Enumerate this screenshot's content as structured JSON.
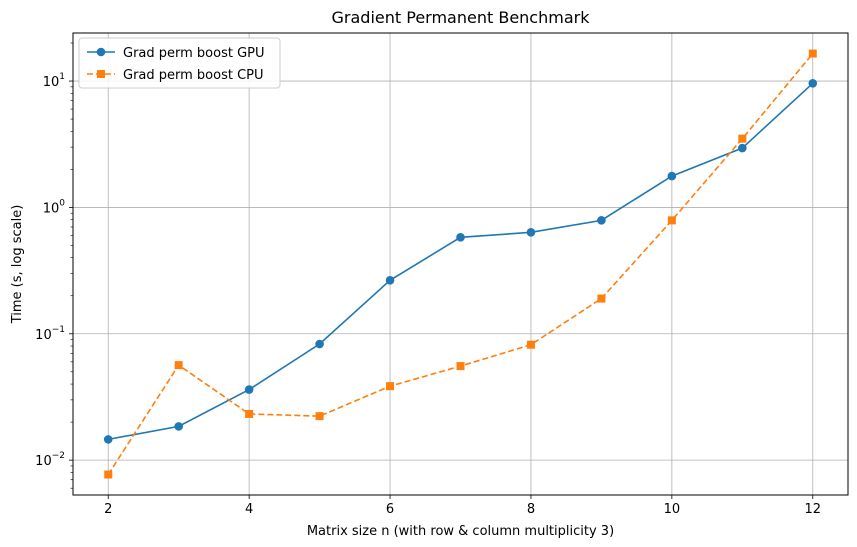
{
  "chart_data": {
    "type": "line",
    "title": "Gradient Permanent Benchmark",
    "xlabel": "Matrix size n (with row & column multiplicity 3)",
    "ylabel": "Time (s, log scale)",
    "y_scale": "log",
    "xlim": [
      1.5,
      12.5
    ],
    "ylim": [
      0.0053,
      24
    ],
    "x_ticks": [
      2,
      4,
      6,
      8,
      10,
      12
    ],
    "y_ticks": [
      {
        "value": 0.01,
        "base": "10",
        "exp": "−2"
      },
      {
        "value": 0.1,
        "base": "10",
        "exp": "−1"
      },
      {
        "value": 1,
        "base": "10",
        "exp": "0"
      },
      {
        "value": 10,
        "base": "10",
        "exp": "1"
      }
    ],
    "grid": true,
    "legend_position": "top-left",
    "x": [
      2,
      3,
      4,
      5,
      6,
      7,
      8,
      9,
      10,
      11,
      12
    ],
    "series": [
      {
        "name": "Grad perm boost GPU",
        "color": "#1f77b4",
        "marker": "circle",
        "linestyle": "solid",
        "values": [
          0.0146,
          0.0185,
          0.0362,
          0.083,
          0.265,
          0.58,
          0.635,
          0.79,
          1.77,
          2.95,
          9.6
        ]
      },
      {
        "name": "Grad perm boost CPU",
        "color": "#ff7f0e",
        "marker": "square",
        "linestyle": "dashed",
        "values": [
          0.0077,
          0.0565,
          0.0232,
          0.0223,
          0.0385,
          0.0555,
          0.082,
          0.19,
          0.79,
          3.5,
          16.5
        ]
      }
    ]
  }
}
